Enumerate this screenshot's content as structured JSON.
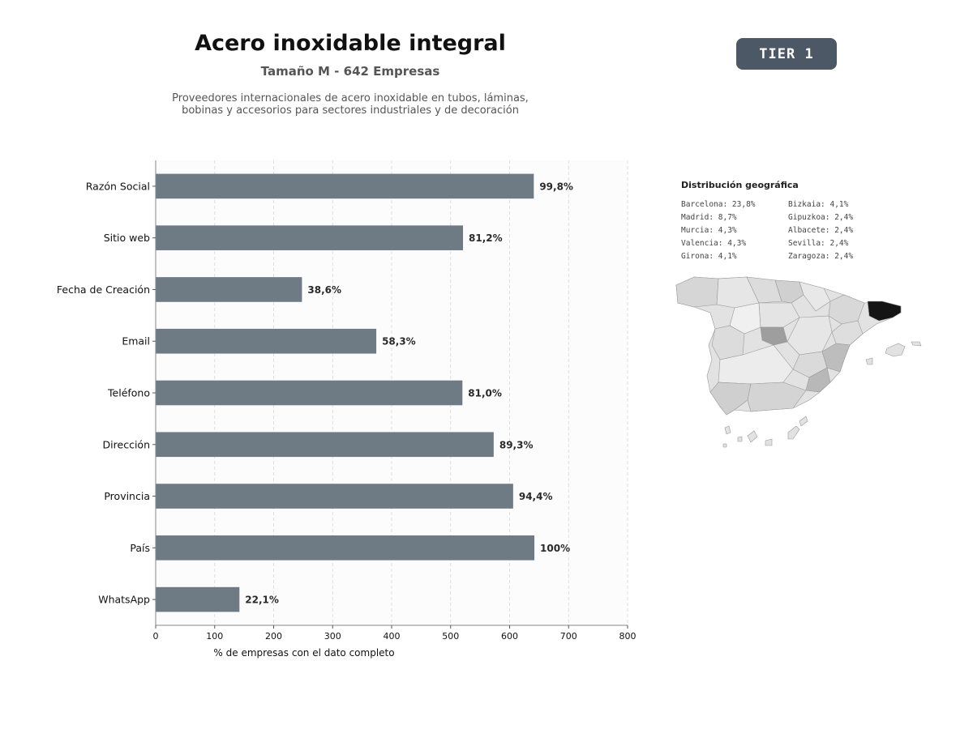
{
  "header": {
    "title": "Acero inoxidable integral",
    "subtitle": "Tamaño M - 642 Empresas",
    "description_lines": [
      "Proveedores internacionales de acero inoxidable en tubos, láminas,",
      "bobinas y accesorios para sectores industriales y de decoración"
    ]
  },
  "badge": {
    "label": "TIER 1",
    "color": "#4d5866"
  },
  "chart_data": {
    "type": "bar",
    "orientation": "horizontal",
    "categories": [
      "Razón Social",
      "Sitio web",
      "Fecha de Creación",
      "Email",
      "Teléfono",
      "Dirección",
      "Provincia",
      "País",
      "WhatsApp"
    ],
    "values": [
      641,
      521,
      248,
      374,
      520,
      573,
      606,
      642,
      142
    ],
    "data_labels": [
      "99,8%",
      "81,2%",
      "38,6%",
      "58,3%",
      "81,0%",
      "89,3%",
      "94,4%",
      "100%",
      "22,1%"
    ],
    "xlabel": "% de empresas con el dato completo",
    "xlim": [
      0,
      800
    ],
    "xticks": [
      0,
      100,
      200,
      300,
      400,
      500,
      600,
      700,
      800
    ],
    "grid": "vertical dashed",
    "bar_color": "#6e7a84"
  },
  "geo": {
    "title": "Distribución geográfica",
    "items": [
      "Barcelona: 23,8%",
      "Bizkaia: 4,1%",
      "Madrid: 8,7%",
      "Gipuzkoa: 2,4%",
      "Murcia: 4,3%",
      "Albacete: 2,4%",
      "Valencia: 4,3%",
      "Sevilla: 2,4%",
      "Girona: 4,1%",
      "Zaragoza: 2,4%"
    ]
  }
}
